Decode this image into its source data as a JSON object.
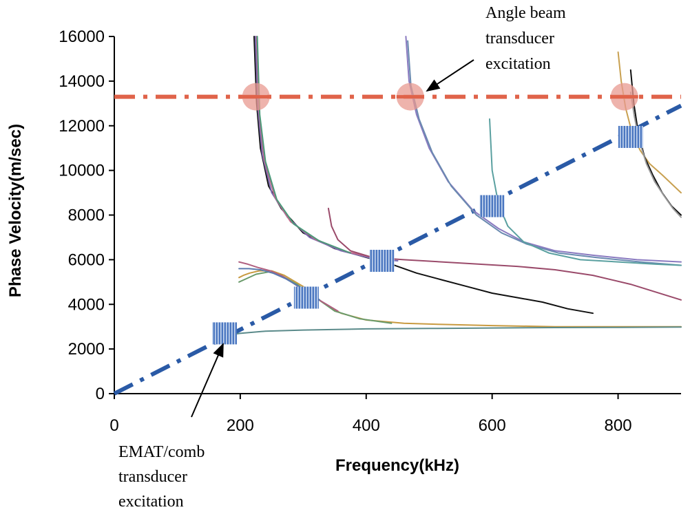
{
  "chart_data": {
    "type": "line",
    "title": "",
    "xlabel": "Frequency(kHz)",
    "ylabel": "Phase Velocity(m/sec)",
    "xlim": [
      0,
      900
    ],
    "ylim": [
      0,
      16000
    ],
    "x_ticks": [
      "0",
      "200",
      "400",
      "600",
      "800"
    ],
    "y_ticks": [
      "0",
      "2000",
      "4000",
      "6000",
      "8000",
      "10000",
      "12000",
      "14000",
      "16000"
    ],
    "grid": false,
    "legend": "none",
    "excitation_lines": [
      {
        "style": "dash-dot",
        "color": "#e0634a",
        "x": [
          0,
          900
        ],
        "y": [
          13300,
          13300
        ],
        "intersection_markers": {
          "shape": "circle",
          "color": "#e89a90",
          "points": [
            [
              225,
              13300
            ],
            [
              470,
              13300
            ],
            [
              810,
              13300
            ]
          ]
        }
      },
      {
        "style": "dash-dot",
        "color": "#2a5aa6",
        "x": [
          0,
          900
        ],
        "y": [
          0,
          12900
        ],
        "intersection_markers": {
          "shape": "square",
          "color": "#5b86c7",
          "points": [
            [
              175,
              2700
            ],
            [
              305,
              4300
            ],
            [
              425,
              5950
            ],
            [
              600,
              8400
            ],
            [
              820,
              11500
            ]
          ]
        }
      }
    ],
    "series": [
      {
        "color": "#101010",
        "x": [
          222,
          226,
          232,
          245,
          265,
          300,
          350,
          400,
          440,
          480,
          520,
          560,
          600,
          640,
          680,
          720,
          760
        ],
        "y": [
          16000,
          13000,
          11000,
          9300,
          8300,
          7200,
          6500,
          6100,
          5800,
          5400,
          5100,
          4800,
          4500,
          4300,
          4100,
          3800,
          3600
        ]
      },
      {
        "color": "#7a6ab0",
        "x": [
          224,
          228,
          235,
          250,
          275,
          310,
          360,
          410,
          450
        ],
        "y": [
          16000,
          12800,
          10700,
          9000,
          7900,
          7000,
          6400,
          6050,
          5950
        ]
      },
      {
        "color": "#c06a8a",
        "x": [
          226,
          230,
          238,
          255,
          280,
          320,
          370,
          420
        ],
        "y": [
          16000,
          12600,
          10500,
          8800,
          7700,
          6900,
          6350,
          6050
        ]
      },
      {
        "color": "#4a9a7a",
        "x": [
          227,
          231,
          240,
          258,
          285,
          325,
          375
        ],
        "y": [
          16000,
          12500,
          10400,
          8700,
          7600,
          6850,
          6300
        ]
      },
      {
        "color": "#9a4a6a",
        "x": [
          340,
          345,
          355,
          375,
          410,
          460,
          520,
          580,
          640,
          700,
          760,
          820,
          900
        ],
        "y": [
          8300,
          7500,
          6900,
          6400,
          6100,
          6000,
          5900,
          5800,
          5700,
          5550,
          5300,
          4900,
          4200
        ]
      },
      {
        "color": "#8a7ac0",
        "x": [
          463,
          468,
          480,
          500,
          530,
          570,
          610,
          650,
          700,
          760,
          830,
          900
        ],
        "y": [
          16000,
          14000,
          12500,
          11000,
          9500,
          8200,
          7400,
          6800,
          6400,
          6200,
          6000,
          5900
        ]
      },
      {
        "color": "#6a8ab0",
        "x": [
          466,
          471,
          484,
          505,
          535,
          575,
          615,
          655,
          705,
          765,
          835,
          900
        ],
        "y": [
          15800,
          13800,
          12300,
          10800,
          9300,
          8000,
          7200,
          6700,
          6300,
          6100,
          5900,
          5750
        ]
      },
      {
        "color": "#5aa0a0",
        "x": [
          596,
          600,
          610,
          625,
          650,
          690,
          740,
          800,
          860,
          900
        ],
        "y": [
          12300,
          10000,
          8500,
          7500,
          6800,
          6300,
          6000,
          5900,
          5800,
          5750
        ]
      },
      {
        "color": "#c89a40",
        "x": [
          198,
          205,
          215,
          230,
          250,
          270,
          300,
          330,
          360,
          400,
          460,
          520,
          600,
          700,
          800,
          900
        ],
        "y": [
          5200,
          5300,
          5400,
          5500,
          5500,
          5300,
          4800,
          4100,
          3600,
          3300,
          3150,
          3100,
          3050,
          3000,
          3000,
          3000
        ]
      },
      {
        "color": "#6a9a6a",
        "x": [
          198,
          210,
          225,
          245,
          265,
          290,
          320,
          350,
          390,
          440
        ],
        "y": [
          5000,
          5150,
          5350,
          5450,
          5300,
          4900,
          4300,
          3700,
          3350,
          3150
        ]
      },
      {
        "color": "#b06080",
        "x": [
          198,
          212,
          228,
          248,
          268,
          292,
          322,
          355
        ],
        "y": [
          5900,
          5800,
          5650,
          5500,
          5250,
          4800,
          4250,
          3700
        ]
      },
      {
        "color": "#5a7ab0",
        "x": [
          198,
          214,
          232,
          252,
          272,
          296,
          326
        ],
        "y": [
          5600,
          5600,
          5550,
          5400,
          5150,
          4750,
          4200
        ]
      },
      {
        "color": "#5a8a8a",
        "x": [
          175,
          200,
          240,
          300,
          400,
          500,
          600,
          700,
          800,
          900
        ],
        "y": [
          2600,
          2700,
          2800,
          2850,
          2900,
          2920,
          2940,
          2960,
          2970,
          2980
        ]
      },
      {
        "color": "#c8a050",
        "x": [
          800,
          805,
          812,
          822,
          835,
          850,
          870,
          900
        ],
        "y": [
          15300,
          14000,
          12800,
          11700,
          10900,
          10300,
          9800,
          9000
        ]
      },
      {
        "color": "#101010",
        "x": [
          820,
          825,
          832,
          842,
          855,
          870,
          885,
          900
        ],
        "y": [
          14500,
          13000,
          11700,
          10600,
          9800,
          9000,
          8400,
          8000
        ]
      },
      {
        "color": "#9a9a9a",
        "x": [
          820,
          826,
          834,
          845,
          858,
          872,
          887,
          900
        ],
        "y": [
          13500,
          12400,
          11300,
          10300,
          9500,
          8900,
          8300,
          7900
        ]
      }
    ],
    "annotations": [
      {
        "lines": [
          "Angle beam",
          "transducer",
          "excitation"
        ],
        "points_to": [
          470,
          13300
        ]
      },
      {
        "lines": [
          "EMAT/comb",
          "transducer",
          "excitation"
        ],
        "points_to": [
          175,
          2700
        ]
      }
    ]
  }
}
